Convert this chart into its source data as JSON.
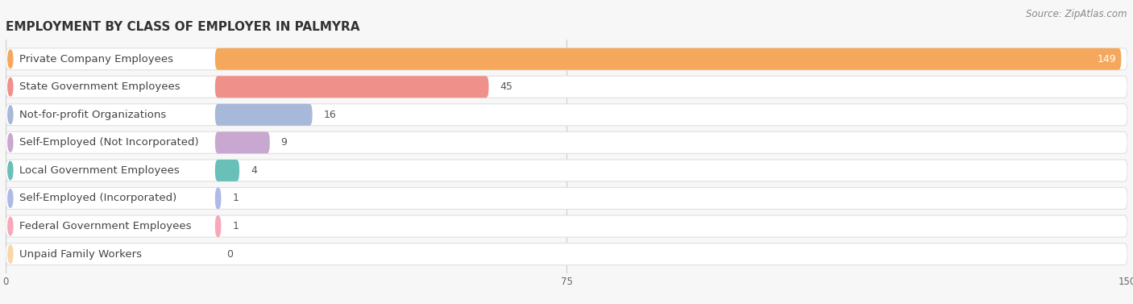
{
  "title": "EMPLOYMENT BY CLASS OF EMPLOYER IN PALMYRA",
  "source": "Source: ZipAtlas.com",
  "categories": [
    "Private Company Employees",
    "State Government Employees",
    "Not-for-profit Organizations",
    "Self-Employed (Not Incorporated)",
    "Local Government Employees",
    "Self-Employed (Incorporated)",
    "Federal Government Employees",
    "Unpaid Family Workers"
  ],
  "values": [
    149,
    45,
    16,
    9,
    4,
    1,
    1,
    0
  ],
  "bar_colors": [
    "#f5a85c",
    "#f0908a",
    "#a8b8d8",
    "#c8a8d0",
    "#68c0b8",
    "#b0b8e8",
    "#f8a8b8",
    "#f8d8a8"
  ],
  "background_color": "#f7f7f7",
  "bar_bg_color": "#ffffff",
  "bar_bg_outline": "#e0e0e0",
  "xlim_max": 150,
  "xticks": [
    0,
    75,
    150
  ],
  "title_fontsize": 11,
  "label_fontsize": 9.5,
  "value_fontsize": 9,
  "source_fontsize": 8.5
}
